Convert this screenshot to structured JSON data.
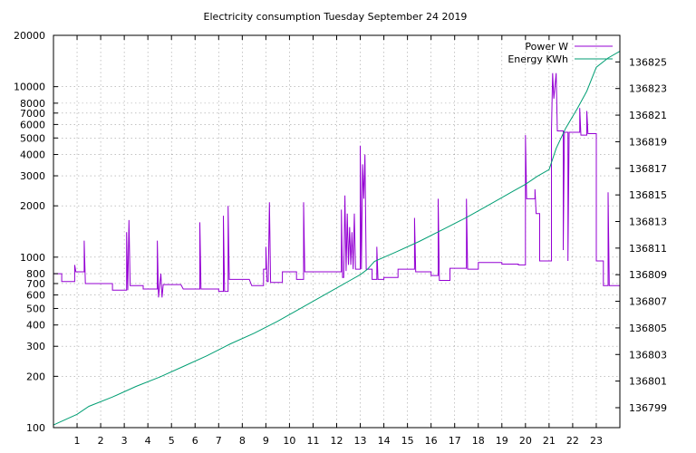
{
  "chart_data": {
    "type": "line",
    "title": "Electricity consumption Tuesday September 24 2019",
    "xlabel": "",
    "ylabel": "",
    "y2label": "",
    "x_ticks": [
      "1",
      "2",
      "3",
      "4",
      "5",
      "6",
      "7",
      "8",
      "9",
      "10",
      "11",
      "12",
      "13",
      "14",
      "15",
      "16",
      "17",
      "18",
      "19",
      "20",
      "21",
      "22",
      "23"
    ],
    "xlim": [
      0,
      24
    ],
    "ylim": [
      100,
      20000
    ],
    "y_scale": "log",
    "y_ticks": [
      "100",
      "200",
      "300",
      "400",
      "500",
      "600",
      "700",
      "800",
      "1000",
      "2000",
      "3000",
      "4000",
      "5000",
      "6000",
      "7000",
      "8000",
      "10000",
      "20000"
    ],
    "y2lim": [
      136797.5,
      136827
    ],
    "y2_ticks": [
      "136799",
      "136801",
      "136803",
      "136805",
      "136807",
      "136809",
      "136811",
      "136813",
      "136815",
      "136817",
      "136819",
      "136821",
      "136823",
      "136825"
    ],
    "grid": true,
    "legend": "top-right",
    "colors": {
      "power": "#9400d3",
      "energy": "#009e73"
    },
    "series": [
      {
        "name": "Power W",
        "axis": "y1",
        "points": [
          [
            0.0,
            800
          ],
          [
            0.35,
            800
          ],
          [
            0.35,
            720
          ],
          [
            0.9,
            720
          ],
          [
            0.9,
            900
          ],
          [
            0.95,
            820
          ],
          [
            1.3,
            820
          ],
          [
            1.3,
            1250
          ],
          [
            1.35,
            700
          ],
          [
            1.5,
            700
          ],
          [
            1.5,
            700
          ],
          [
            2.5,
            700
          ],
          [
            2.5,
            640
          ],
          [
            3.1,
            640
          ],
          [
            3.1,
            1400
          ],
          [
            3.15,
            640
          ],
          [
            3.2,
            1650
          ],
          [
            3.25,
            680
          ],
          [
            3.8,
            680
          ],
          [
            3.8,
            650
          ],
          [
            4.4,
            650
          ],
          [
            4.4,
            1250
          ],
          [
            4.45,
            580
          ],
          [
            4.55,
            800
          ],
          [
            4.6,
            580
          ],
          [
            4.65,
            690
          ],
          [
            5.4,
            690
          ],
          [
            5.5,
            650
          ],
          [
            6.2,
            650
          ],
          [
            6.2,
            1600
          ],
          [
            6.25,
            650
          ],
          [
            7.0,
            650
          ],
          [
            7.0,
            630
          ],
          [
            7.2,
            630
          ],
          [
            7.2,
            1750
          ],
          [
            7.25,
            630
          ],
          [
            7.4,
            630
          ],
          [
            7.4,
            2000
          ],
          [
            7.45,
            740
          ],
          [
            8.3,
            740
          ],
          [
            8.4,
            680
          ],
          [
            8.9,
            680
          ],
          [
            8.9,
            850
          ],
          [
            9.0,
            850
          ],
          [
            9.0,
            1150
          ],
          [
            9.05,
            720
          ],
          [
            9.1,
            720
          ],
          [
            9.15,
            2100
          ],
          [
            9.2,
            710
          ],
          [
            9.7,
            710
          ],
          [
            9.7,
            820
          ],
          [
            10.3,
            820
          ],
          [
            10.3,
            740
          ],
          [
            10.6,
            740
          ],
          [
            10.6,
            2100
          ],
          [
            10.65,
            820
          ],
          [
            12.2,
            820
          ],
          [
            12.2,
            1900
          ],
          [
            12.25,
            760
          ],
          [
            12.3,
            760
          ],
          [
            12.35,
            2300
          ],
          [
            12.4,
            830
          ],
          [
            12.45,
            1800
          ],
          [
            12.5,
            900
          ],
          [
            12.55,
            1500
          ],
          [
            12.6,
            900
          ],
          [
            12.65,
            1400
          ],
          [
            12.7,
            850
          ],
          [
            12.75,
            1800
          ],
          [
            12.8,
            850
          ],
          [
            13.0,
            850
          ],
          [
            13.0,
            4500
          ],
          [
            13.05,
            850
          ],
          [
            13.1,
            3500
          ],
          [
            13.15,
            2200
          ],
          [
            13.2,
            4000
          ],
          [
            13.25,
            850
          ],
          [
            13.5,
            850
          ],
          [
            13.5,
            740
          ],
          [
            13.7,
            740
          ],
          [
            13.7,
            1150
          ],
          [
            13.75,
            740
          ],
          [
            14.0,
            740
          ],
          [
            14.0,
            760
          ],
          [
            14.6,
            760
          ],
          [
            14.6,
            850
          ],
          [
            15.3,
            850
          ],
          [
            15.3,
            1700
          ],
          [
            15.35,
            820
          ],
          [
            16.0,
            820
          ],
          [
            16.0,
            780
          ],
          [
            16.3,
            780
          ],
          [
            16.3,
            2200
          ],
          [
            16.35,
            730
          ],
          [
            16.8,
            730
          ],
          [
            16.8,
            860
          ],
          [
            17.5,
            860
          ],
          [
            17.5,
            2200
          ],
          [
            17.55,
            850
          ],
          [
            18.0,
            850
          ],
          [
            18.0,
            930
          ],
          [
            19.0,
            930
          ],
          [
            19.0,
            910
          ],
          [
            19.7,
            910
          ],
          [
            19.7,
            900
          ],
          [
            20.0,
            900
          ],
          [
            20.0,
            5200
          ],
          [
            20.05,
            2200
          ],
          [
            20.4,
            2200
          ],
          [
            20.4,
            2500
          ],
          [
            20.45,
            1800
          ],
          [
            20.6,
            1800
          ],
          [
            20.6,
            950
          ],
          [
            21.1,
            950
          ],
          [
            21.1,
            5500
          ],
          [
            21.15,
            12000
          ],
          [
            21.2,
            8500
          ],
          [
            21.3,
            12000
          ],
          [
            21.35,
            5500
          ],
          [
            21.6,
            5500
          ],
          [
            21.6,
            1100
          ],
          [
            21.65,
            5400
          ],
          [
            21.8,
            5400
          ],
          [
            21.8,
            950
          ],
          [
            21.85,
            5400
          ],
          [
            22.3,
            5400
          ],
          [
            22.3,
            7500
          ],
          [
            22.35,
            5200
          ],
          [
            22.6,
            5200
          ],
          [
            22.6,
            7200
          ],
          [
            22.65,
            5300
          ],
          [
            23.0,
            5300
          ],
          [
            23.0,
            950
          ],
          [
            23.3,
            950
          ],
          [
            23.3,
            680
          ],
          [
            23.5,
            680
          ],
          [
            23.5,
            2400
          ],
          [
            23.55,
            680
          ],
          [
            24.0,
            680
          ]
        ]
      },
      {
        "name": "Energy KWh",
        "axis": "y2",
        "points": [
          [
            0.0,
            136797.7
          ],
          [
            1.0,
            136798.5
          ],
          [
            1.5,
            136799.1
          ],
          [
            2.5,
            136799.8
          ],
          [
            3.5,
            136800.6
          ],
          [
            4.5,
            136801.3
          ],
          [
            5.5,
            136802.1
          ],
          [
            6.5,
            136802.9
          ],
          [
            7.5,
            136803.8
          ],
          [
            8.5,
            136804.6
          ],
          [
            9.5,
            136805.5
          ],
          [
            10.5,
            136806.5
          ],
          [
            11.5,
            136807.5
          ],
          [
            12.5,
            136808.5
          ],
          [
            13.0,
            136809.0
          ],
          [
            13.3,
            136809.4
          ],
          [
            13.6,
            136810.0
          ],
          [
            14.5,
            136810.7
          ],
          [
            15.5,
            136811.5
          ],
          [
            16.5,
            136812.4
          ],
          [
            17.5,
            136813.3
          ],
          [
            18.5,
            136814.3
          ],
          [
            19.5,
            136815.3
          ],
          [
            20.0,
            136815.8
          ],
          [
            20.5,
            136816.4
          ],
          [
            21.0,
            136816.9
          ],
          [
            21.3,
            136818.5
          ],
          [
            21.7,
            136820.0
          ],
          [
            22.2,
            136821.5
          ],
          [
            22.6,
            136822.8
          ],
          [
            23.0,
            136824.6
          ],
          [
            23.5,
            136825.3
          ],
          [
            24.0,
            136825.8
          ]
        ]
      }
    ]
  }
}
